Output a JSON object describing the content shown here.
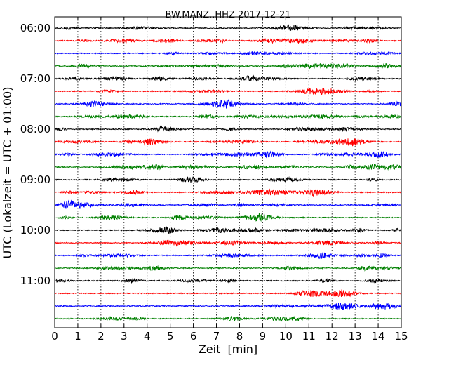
{
  "chart_data": {
    "type": "line",
    "title": "BW.MANZ..HHZ 2017-12-21",
    "xlabel": "Zeit  [min]",
    "ylabel": "UTC (Lokalzeit = UTC + 01:00)",
    "xlim": [
      0,
      15
    ],
    "x_ticks": [
      "0",
      "1",
      "2",
      "3",
      "4",
      "5",
      "6",
      "7",
      "8",
      "9",
      "10",
      "11",
      "12",
      "13",
      "14",
      "15"
    ],
    "y_tick_labels": [
      "06:00",
      "07:00",
      "08:00",
      "09:00",
      "10:00",
      "11:00"
    ],
    "trace_start_times": [
      "06:00",
      "06:15",
      "06:30",
      "06:45",
      "07:00",
      "07:15",
      "07:30",
      "07:45",
      "08:00",
      "08:15",
      "08:30",
      "08:45",
      "09:00",
      "09:15",
      "09:30",
      "09:45",
      "10:00",
      "10:15",
      "10:30",
      "10:45",
      "11:00",
      "11:15",
      "11:30",
      "11:45"
    ],
    "trace_minutes_per_line": 15,
    "color_cycle": [
      "#000000",
      "#ff0000",
      "#0000ff",
      "#008000"
    ],
    "grid": {
      "vertical_dotted": true,
      "horizontal": false
    }
  }
}
